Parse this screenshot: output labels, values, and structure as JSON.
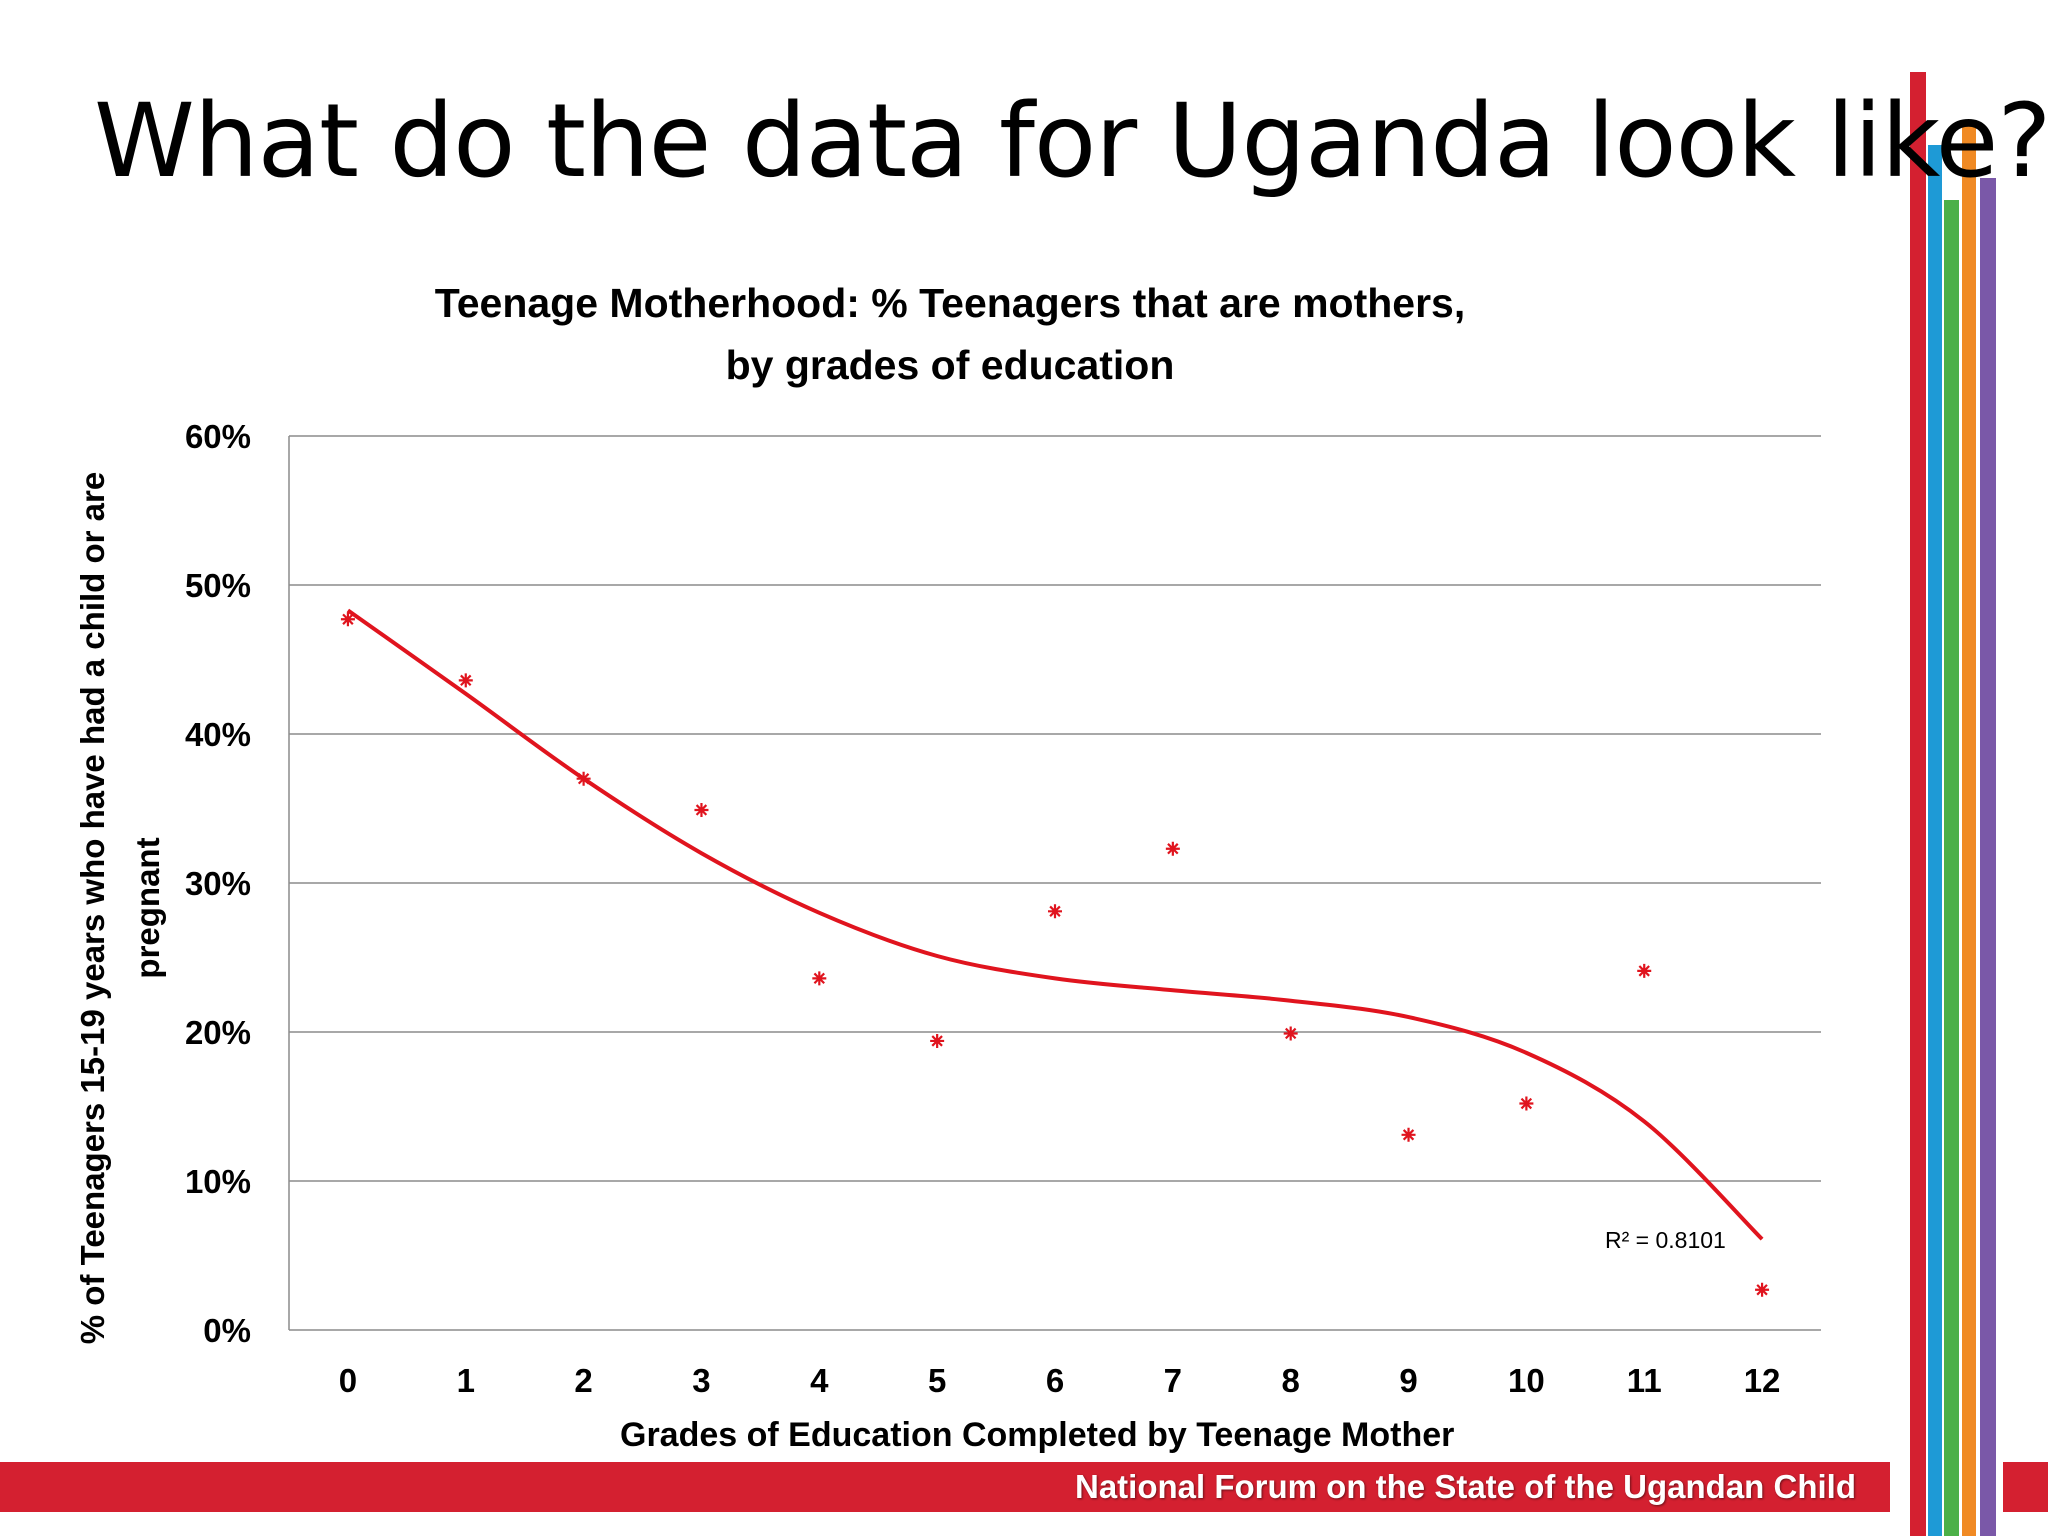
{
  "slide": {
    "title": "What do the data for Uganda look like?",
    "footer": "National Forum on the State of the Ugandan Child",
    "accent_colors": {
      "red": "#d42030",
      "blue": "#1e9ad6",
      "green": "#4cb048",
      "orange": "#f08a24",
      "purple": "#7a58a8"
    }
  },
  "chart_data": {
    "type": "scatter",
    "title_lines": [
      "Teenage  Motherhood: % Teenagers that are mothers,",
      "by grades of education"
    ],
    "xlabel": "Grades of Education  Completed by Teenage Mother",
    "ylabel": "% of Teenagers 15-19 years who have had a child or are pregnant",
    "x": [
      0,
      1,
      2,
      3,
      4,
      5,
      6,
      7,
      8,
      9,
      10,
      11,
      12
    ],
    "x_tick_labels": [
      "0",
      "1",
      "2",
      "3",
      "4",
      "5",
      "6",
      "7",
      "8",
      "9",
      "10",
      "11",
      "12"
    ],
    "y": [
      47.7,
      43.6,
      37.0,
      34.9,
      23.6,
      19.4,
      28.1,
      32.3,
      19.9,
      13.1,
      15.2,
      24.1,
      2.7
    ],
    "y_tick_values": [
      0,
      10,
      20,
      30,
      40,
      50,
      60
    ],
    "y_tick_labels": [
      "0%",
      "10%",
      "20%",
      "30%",
      "40%",
      "50%",
      "60%"
    ],
    "ylim": [
      0,
      60
    ],
    "xlim": [
      -0.5,
      12.5
    ],
    "grid": "horizontal",
    "marker": "asterisk",
    "marker_color": "#e0141e",
    "trendline": {
      "type": "polynomial",
      "color": "#e0141e",
      "points": [
        [
          0,
          48.3
        ],
        [
          1,
          42.7
        ],
        [
          2,
          37.0
        ],
        [
          3,
          32.0
        ],
        [
          4,
          28.0
        ],
        [
          5,
          25.1
        ],
        [
          6,
          23.6
        ],
        [
          7,
          22.8
        ],
        [
          8,
          22.1
        ],
        [
          9,
          21.0
        ],
        [
          10,
          18.6
        ],
        [
          11,
          14.0
        ],
        [
          12,
          6.1
        ]
      ],
      "r_squared_label": "R² = 0.8101"
    }
  }
}
